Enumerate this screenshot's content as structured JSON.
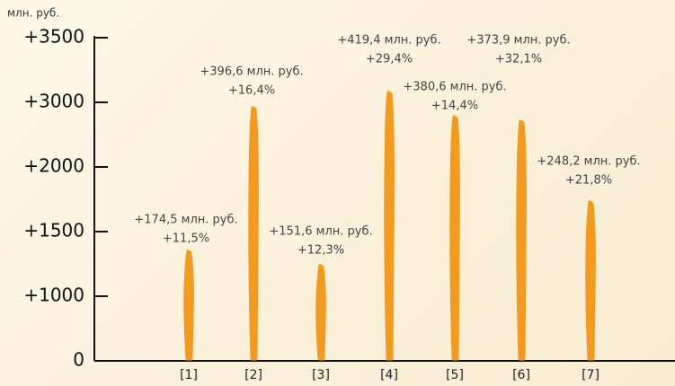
{
  "chart_data": {
    "type": "bar",
    "y_label": "млн. руб.",
    "categories": [
      "[1]",
      "[2]",
      "[3]",
      "[4]",
      "[5]",
      "[6]",
      "[7]"
    ],
    "values": [
      1350,
      2920,
      1240,
      3080,
      2780,
      2710,
      1730
    ],
    "color": "#f39a1f",
    "ylim": [
      0,
      3500
    ],
    "yticks": [
      0,
      {
        "value": 1000,
        "label": "+1000"
      },
      {
        "value": 1500,
        "label": "+1500"
      },
      {
        "value": 2000,
        "label": "+2000"
      },
      {
        "value": 3000,
        "label": "+3000"
      },
      {
        "value": 3500,
        "label": "+3500"
      }
    ],
    "annotations": [
      {
        "text": "+174,5 млн. руб.",
        "change": "+11,5%"
      },
      {
        "text": "+396,6 млн. руб.",
        "change": "+16,4%"
      },
      {
        "text": "+151,6 млн. руб.",
        "change": "+12,3%"
      },
      {
        "text": "+419,4 млн. руб.",
        "change": "+29,4%"
      },
      {
        "text": "+380,6 млн. руб.",
        "change": "+14,4%"
      },
      {
        "text": "+373,9 млн. руб.",
        "change": "+32,1%"
      },
      {
        "text": "+248,2 млн. руб.",
        "change": "+21,8%"
      }
    ]
  }
}
